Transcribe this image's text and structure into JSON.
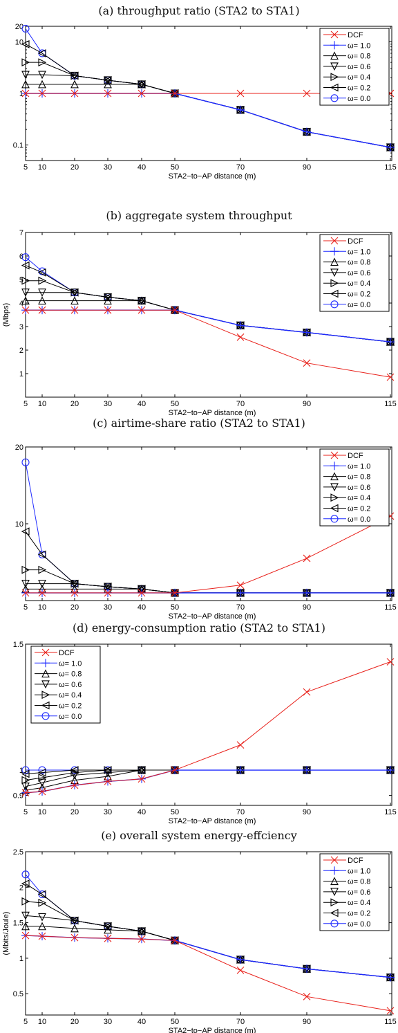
{
  "figure": {
    "colors": {
      "dcf": "#e8201a",
      "omega_1": "#1e2aff",
      "black": "#000000",
      "omega_0": "#1e2aff"
    },
    "legend_entries": [
      {
        "label": "DCF",
        "marker": "x-mark",
        "color": "#e8201a"
      },
      {
        "label": "ω= 1.0",
        "marker": "plus-mark",
        "color": "#1e2aff"
      },
      {
        "label": "ω= 0.8",
        "marker": "triangle-up-mark",
        "color": "#000000"
      },
      {
        "label": "ω= 0.6",
        "marker": "triangle-down-mark",
        "color": "#000000"
      },
      {
        "label": "ω= 0.4",
        "marker": "triangle-right-mark",
        "color": "#000000"
      },
      {
        "label": "ω= 0.2",
        "marker": "triangle-left-mark",
        "color": "#000000"
      },
      {
        "label": "ω= 0.0",
        "marker": "circle-mark",
        "color": "#1e2aff"
      }
    ]
  },
  "chart_data": [
    {
      "type": "line",
      "title": "(a) throughput ratio (STA2 to STA1)",
      "xlabel": "STA2−to−AP distance (m)",
      "ylabel": "",
      "yscale": "log",
      "x": [
        5,
        10,
        20,
        30,
        40,
        50,
        70,
        90,
        115
      ],
      "x_ticks": [
        "5",
        "10",
        "20",
        "30",
        "40",
        "50",
        "70",
        "90",
        "115"
      ],
      "y_ticks": [
        {
          "v": 0.1,
          "label": "0.1"
        },
        {
          "v": 1,
          "label": "1"
        },
        {
          "v": 10,
          "label": "10"
        },
        {
          "v": 20,
          "label": "20"
        }
      ],
      "ylim": [
        0.05,
        20
      ],
      "legend_position": "top-right",
      "grid": false,
      "series": [
        {
          "name": "DCF",
          "values": [
            1,
            1,
            1,
            1,
            1,
            1,
            1,
            1,
            1
          ]
        },
        {
          "name": "ω= 1.0",
          "values": [
            1,
            1,
            1,
            1,
            1,
            1,
            0.48,
            0.18,
            0.09
          ]
        },
        {
          "name": "ω= 0.8",
          "values": [
            1.5,
            1.5,
            1.5,
            1.5,
            1.5,
            1,
            0.48,
            0.18,
            0.09
          ]
        },
        {
          "name": "ω= 0.6",
          "values": [
            2.3,
            2.3,
            2.2,
            1.8,
            1.5,
            1,
            0.48,
            0.18,
            0.09
          ]
        },
        {
          "name": "ω= 0.4",
          "values": [
            4,
            4,
            2.2,
            1.8,
            1.5,
            1,
            0.48,
            0.18,
            0.09
          ]
        },
        {
          "name": "ω= 0.2",
          "values": [
            9,
            6,
            2.2,
            1.8,
            1.5,
            1,
            0.48,
            0.18,
            0.09
          ]
        },
        {
          "name": "ω= 0.0",
          "values": [
            18,
            6,
            2.2,
            1.8,
            1.5,
            1,
            0.48,
            0.18,
            0.09
          ]
        }
      ]
    },
    {
      "type": "line",
      "title": "(b) aggregate system throughput",
      "xlabel": "STA2−to−AP distance (m)",
      "ylabel": "(Mbps)",
      "yscale": "linear",
      "x": [
        5,
        10,
        20,
        30,
        40,
        50,
        70,
        90,
        115
      ],
      "x_ticks": [
        "5",
        "10",
        "20",
        "30",
        "40",
        "50",
        "70",
        "90",
        "115"
      ],
      "y_ticks": [
        {
          "v": 1,
          "label": "1"
        },
        {
          "v": 2,
          "label": "2"
        },
        {
          "v": 3,
          "label": "3"
        },
        {
          "v": 4,
          "label": "4"
        },
        {
          "v": 5,
          "label": "5"
        },
        {
          "v": 6,
          "label": "6"
        },
        {
          "v": 7,
          "label": "7"
        }
      ],
      "ylim": [
        0,
        7
      ],
      "legend_position": "top-right",
      "grid": false,
      "series": [
        {
          "name": "DCF",
          "values": [
            3.7,
            3.7,
            3.7,
            3.7,
            3.7,
            3.7,
            2.55,
            1.45,
            0.85
          ]
        },
        {
          "name": "ω= 1.0",
          "values": [
            3.7,
            3.7,
            3.7,
            3.7,
            3.7,
            3.7,
            3.05,
            2.75,
            2.35
          ]
        },
        {
          "name": "ω= 0.8",
          "values": [
            4.1,
            4.1,
            4.1,
            4.1,
            4.1,
            3.7,
            3.05,
            2.75,
            2.35
          ]
        },
        {
          "name": "ω= 0.6",
          "values": [
            4.45,
            4.45,
            4.45,
            4.25,
            4.1,
            3.7,
            3.05,
            2.75,
            2.35
          ]
        },
        {
          "name": "ω= 0.4",
          "values": [
            4.95,
            4.95,
            4.45,
            4.25,
            4.1,
            3.7,
            3.05,
            2.75,
            2.35
          ]
        },
        {
          "name": "ω= 0.2",
          "values": [
            5.6,
            5.3,
            4.45,
            4.25,
            4.1,
            3.7,
            3.05,
            2.75,
            2.35
          ]
        },
        {
          "name": "ω= 0.0",
          "values": [
            5.95,
            5.35,
            4.45,
            4.25,
            4.1,
            3.7,
            3.05,
            2.75,
            2.35
          ]
        }
      ]
    },
    {
      "type": "line",
      "title": "(c) airtime-share ratio (STA2 to STA1)",
      "xlabel": "STA2−to−AP distance (m)",
      "ylabel": "",
      "yscale": "linear",
      "x": [
        5,
        10,
        20,
        30,
        40,
        50,
        70,
        90,
        115
      ],
      "x_ticks": [
        "5",
        "10",
        "20",
        "30",
        "40",
        "50",
        "70",
        "90",
        "115"
      ],
      "y_ticks": [
        {
          "v": 10,
          "label": "10"
        },
        {
          "v": 20,
          "label": "20"
        }
      ],
      "ylim": [
        0,
        20
      ],
      "legend_position": "top-right",
      "grid": false,
      "series": [
        {
          "name": "DCF",
          "values": [
            1,
            1,
            1,
            1,
            1,
            1,
            2,
            5.5,
            11
          ]
        },
        {
          "name": "ω= 1.0",
          "values": [
            1,
            1,
            1,
            1,
            1,
            1,
            1,
            1,
            1
          ]
        },
        {
          "name": "ω= 0.8",
          "values": [
            1.5,
            1.5,
            1.5,
            1.5,
            1.5,
            1,
            1,
            1,
            1
          ]
        },
        {
          "name": "ω= 0.6",
          "values": [
            2.2,
            2.2,
            2.2,
            1.8,
            1.5,
            1,
            1,
            1,
            1
          ]
        },
        {
          "name": "ω= 0.4",
          "values": [
            4,
            4,
            2.2,
            1.8,
            1.5,
            1,
            1,
            1,
            1
          ]
        },
        {
          "name": "ω= 0.2",
          "values": [
            9,
            6,
            2.2,
            1.8,
            1.5,
            1,
            1,
            1,
            1
          ]
        },
        {
          "name": "ω= 0.0",
          "values": [
            18,
            6,
            2.2,
            1.8,
            1.5,
            1,
            1,
            1,
            1
          ]
        }
      ]
    },
    {
      "type": "line",
      "title": "(d) energy-consumption ratio (STA2 to STA1)",
      "xlabel": "STA2−to−AP distance (m)",
      "ylabel": "",
      "yscale": "linear",
      "x": [
        5,
        10,
        20,
        30,
        40,
        50,
        70,
        90,
        115
      ],
      "x_ticks": [
        "5",
        "10",
        "20",
        "30",
        "40",
        "50",
        "70",
        "90",
        "115"
      ],
      "y_ticks": [
        {
          "v": 0.9,
          "label": "0.9"
        },
        {
          "v": 1,
          "label": "1"
        },
        {
          "v": 1.5,
          "label": "1.5"
        }
      ],
      "ylim": [
        0.86,
        1.5
      ],
      "legend_position": "top-left",
      "grid": false,
      "series": [
        {
          "name": "DCF",
          "values": [
            0.91,
            0.915,
            0.94,
            0.955,
            0.965,
            1.0,
            1.1,
            1.31,
            1.43
          ]
        },
        {
          "name": "ω= 1.0",
          "values": [
            0.91,
            0.915,
            0.94,
            0.955,
            0.965,
            1.0,
            1.0,
            1.0,
            1.0
          ]
        },
        {
          "name": "ω= 0.8",
          "values": [
            0.92,
            0.93,
            0.96,
            0.975,
            1.0,
            1.0,
            1.0,
            1.0,
            1.0
          ]
        },
        {
          "name": "ω= 0.6",
          "values": [
            0.935,
            0.95,
            0.98,
            0.99,
            1.0,
            1.0,
            1.0,
            1.0,
            1.0
          ]
        },
        {
          "name": "ω= 0.4",
          "values": [
            0.96,
            0.97,
            0.99,
            1.0,
            1.0,
            1.0,
            1.0,
            1.0,
            1.0
          ]
        },
        {
          "name": "ω= 0.2",
          "values": [
            0.985,
            0.99,
            1.0,
            1.0,
            1.0,
            1.0,
            1.0,
            1.0,
            1.0
          ]
        },
        {
          "name": "ω= 0.0",
          "values": [
            1.0,
            1.0,
            1.0,
            1.0,
            1.0,
            1.0,
            1.0,
            1.0,
            1.0
          ]
        }
      ]
    },
    {
      "type": "line",
      "title": "(e) overall system energy-effciency",
      "xlabel": "STA2−to−AP distance (m)",
      "ylabel": "(Mbits/Joule)",
      "yscale": "linear",
      "x": [
        5,
        10,
        20,
        30,
        40,
        50,
        70,
        90,
        115
      ],
      "x_ticks": [
        "5",
        "10",
        "20",
        "30",
        "40",
        "50",
        "70",
        "90",
        "115"
      ],
      "y_ticks": [
        {
          "v": 0.5,
          "label": "0.5"
        },
        {
          "v": 1,
          "label": "1"
        },
        {
          "v": 1.5,
          "label": "1.5"
        },
        {
          "v": 2,
          "label": "2"
        },
        {
          "v": 2.5,
          "label": "2.5"
        }
      ],
      "ylim": [
        0.2,
        2.5
      ],
      "legend_position": "top-right",
      "grid": false,
      "series": [
        {
          "name": "DCF",
          "values": [
            1.32,
            1.31,
            1.29,
            1.28,
            1.27,
            1.25,
            0.83,
            0.46,
            0.26
          ]
        },
        {
          "name": "ω= 1.0",
          "values": [
            1.32,
            1.31,
            1.29,
            1.28,
            1.27,
            1.25,
            0.98,
            0.85,
            0.73
          ]
        },
        {
          "name": "ω= 0.8",
          "values": [
            1.45,
            1.45,
            1.42,
            1.4,
            1.38,
            1.25,
            0.98,
            0.85,
            0.73
          ]
        },
        {
          "name": "ω= 0.6",
          "values": [
            1.6,
            1.58,
            1.53,
            1.45,
            1.38,
            1.25,
            0.98,
            0.85,
            0.73
          ]
        },
        {
          "name": "ω= 0.4",
          "values": [
            1.8,
            1.78,
            1.53,
            1.45,
            1.38,
            1.25,
            0.98,
            0.85,
            0.73
          ]
        },
        {
          "name": "ω= 0.2",
          "values": [
            2.05,
            1.9,
            1.53,
            1.45,
            1.38,
            1.25,
            0.98,
            0.85,
            0.73
          ]
        },
        {
          "name": "ω= 0.0",
          "values": [
            2.18,
            1.9,
            1.53,
            1.45,
            1.38,
            1.25,
            0.98,
            0.85,
            0.73
          ]
        }
      ]
    }
  ]
}
